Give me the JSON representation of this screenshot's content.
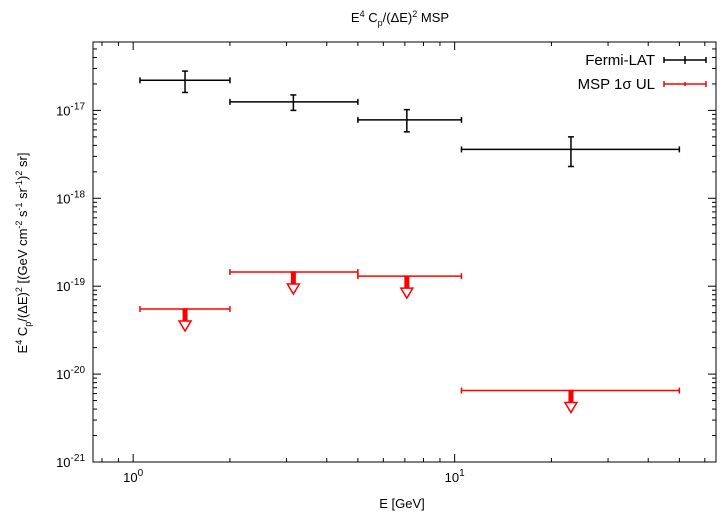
{
  "chart_data": {
    "type": "scatter",
    "title": "E⁴ Cₚ/(ΔE)² MSP",
    "xlabel": "E [GeV]",
    "ylabel": "E⁴ Cₚ/(ΔE)² [(GeV cm⁻² s⁻¹ sr⁻¹)² sr]",
    "x_scale": "log",
    "y_scale": "log",
    "xlim": [
      0.75,
      65
    ],
    "ylim": [
      1e-21,
      6e-17
    ],
    "x_ticks": [
      {
        "value": 1,
        "base": "10",
        "exp": "0"
      },
      {
        "value": 10,
        "base": "10",
        "exp": "1"
      }
    ],
    "y_ticks": [
      {
        "value": 1e-21,
        "base": "10",
        "exp": "-21"
      },
      {
        "value": 1e-20,
        "base": "10",
        "exp": "-20"
      },
      {
        "value": 1e-19,
        "base": "10",
        "exp": "-19"
      },
      {
        "value": 1e-18,
        "base": "10",
        "exp": "-18"
      },
      {
        "value": 1e-17,
        "base": "10",
        "exp": "-17"
      }
    ],
    "grid": false,
    "legend_position": "top-right",
    "series": [
      {
        "name": "Fermi-LAT",
        "color": "#000000",
        "kind": "points",
        "points": [
          {
            "x": 1.45,
            "x_low": 1.05,
            "x_high": 2.0,
            "y": 2.2e-17,
            "y_low": 1.6e-17,
            "y_high": 2.8e-17
          },
          {
            "x": 3.15,
            "x_low": 2.0,
            "x_high": 5.0,
            "y": 1.25e-17,
            "y_low": 1e-17,
            "y_high": 1.5e-17
          },
          {
            "x": 7.1,
            "x_low": 5.0,
            "x_high": 10.5,
            "y": 7.8e-18,
            "y_low": 5.7e-18,
            "y_high": 1.02e-17
          },
          {
            "x": 23,
            "x_low": 10.5,
            "x_high": 50,
            "y": 3.6e-18,
            "y_low": 2.3e-18,
            "y_high": 5e-18
          }
        ]
      },
      {
        "name": "MSP 1σ UL",
        "color": "#ff0000",
        "kind": "upper_limits",
        "points": [
          {
            "x": 1.45,
            "x_low": 1.05,
            "x_high": 2.0,
            "y": 5.5e-20
          },
          {
            "x": 3.15,
            "x_low": 2.0,
            "x_high": 5.0,
            "y": 1.45e-19
          },
          {
            "x": 7.1,
            "x_low": 5.0,
            "x_high": 10.5,
            "y": 1.3e-19
          },
          {
            "x": 23,
            "x_low": 10.5,
            "x_high": 50,
            "y": 6.5e-21
          }
        ]
      }
    ]
  }
}
